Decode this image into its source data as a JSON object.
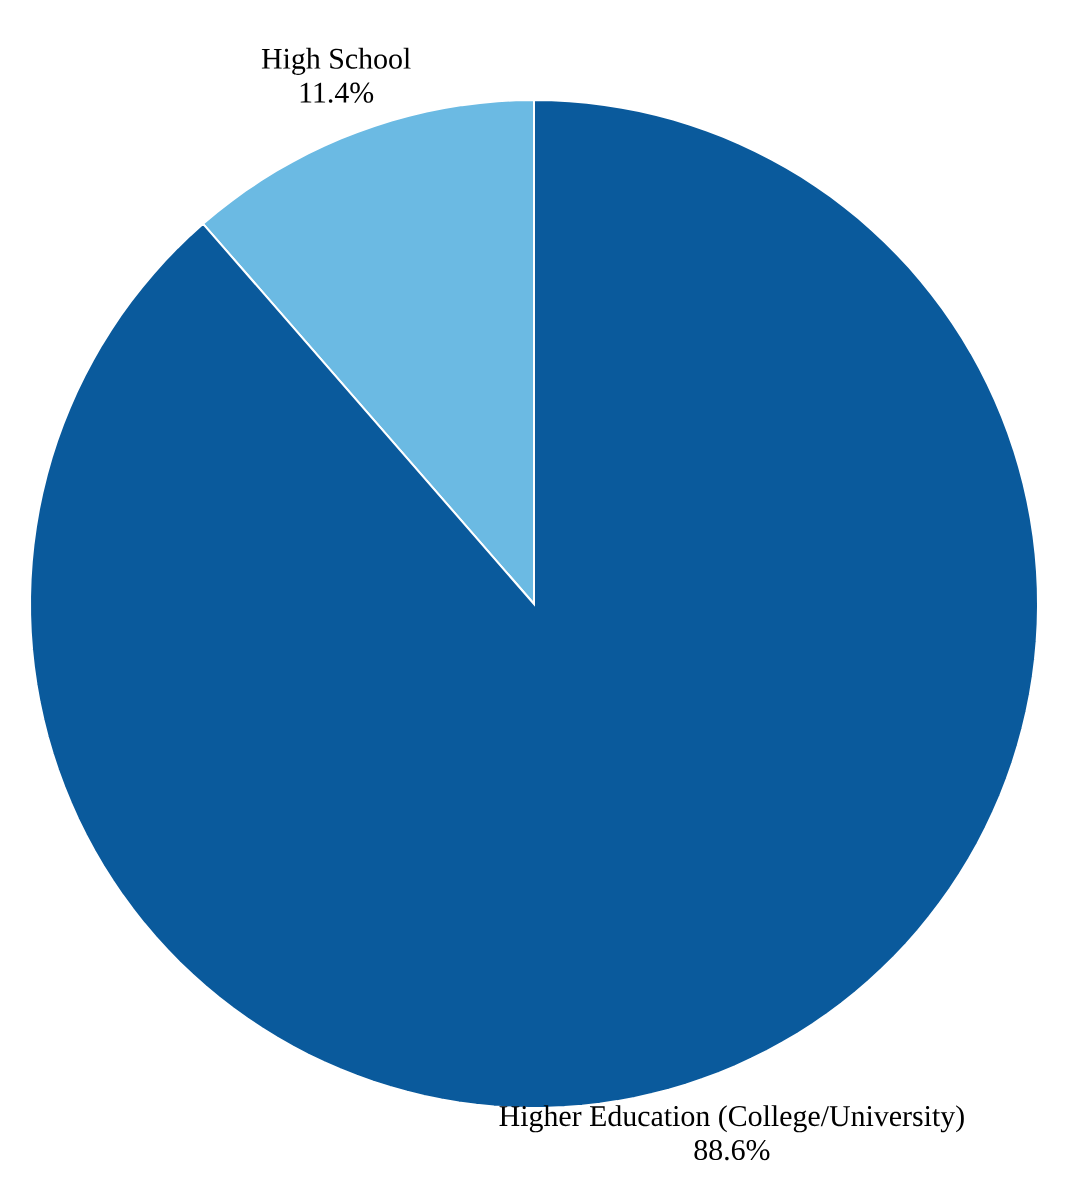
{
  "chart_data": {
    "type": "pie",
    "categories": [
      "High School",
      "Higher Education (College/University)"
    ],
    "values": [
      11.4,
      88.6
    ],
    "value_labels": [
      "11.4%",
      "88.6%"
    ],
    "colors": [
      "#6bbae3",
      "#0a5a9c"
    ]
  }
}
